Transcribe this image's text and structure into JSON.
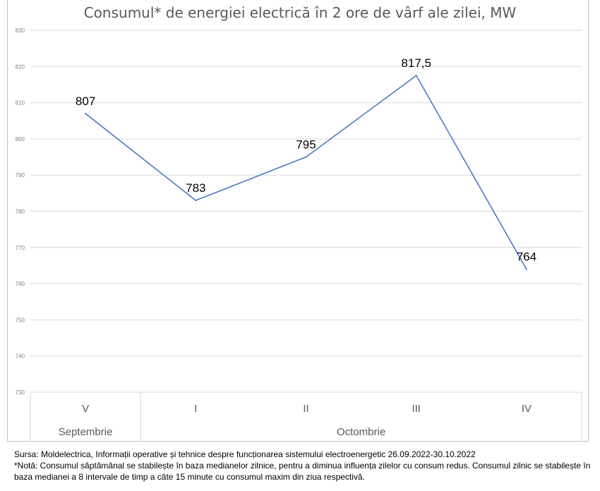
{
  "chart_data": {
    "type": "line",
    "title": "Consumul* de energiei electrică în 2 ore de vârf ale zilei, MW",
    "categories": [
      "V",
      "I",
      "II",
      "III",
      "IV"
    ],
    "category_groups": [
      {
        "label": "Septembrie",
        "span": 1
      },
      {
        "label": "Octombrie",
        "span": 4
      }
    ],
    "series": [
      {
        "values": [
          807,
          783,
          795,
          817.5,
          764
        ],
        "data_labels": [
          "807",
          "783",
          "795",
          "817,5",
          "764"
        ]
      }
    ],
    "ylim": [
      730,
      830
    ],
    "yticks": [
      730,
      740,
      750,
      760,
      770,
      780,
      790,
      800,
      810,
      820,
      830
    ],
    "grid": true,
    "line_color": "#4472c4"
  },
  "notes": {
    "source": "Sursa: Moldelectrica, Informații operative și tehnice despre funcționarea sistemului electroenergetic 26.09.2022-30.10.2022",
    "footnote": "*Notă: Consumul săptămânal se stabilește în baza medianelor zilnice, pentru a diminua influența zilelor cu consum redus. Consumul zilnic se stabilește în baza medianei a 8 intervale de timp a câte 15 minute cu consumul maxim din ziua respectivă."
  }
}
